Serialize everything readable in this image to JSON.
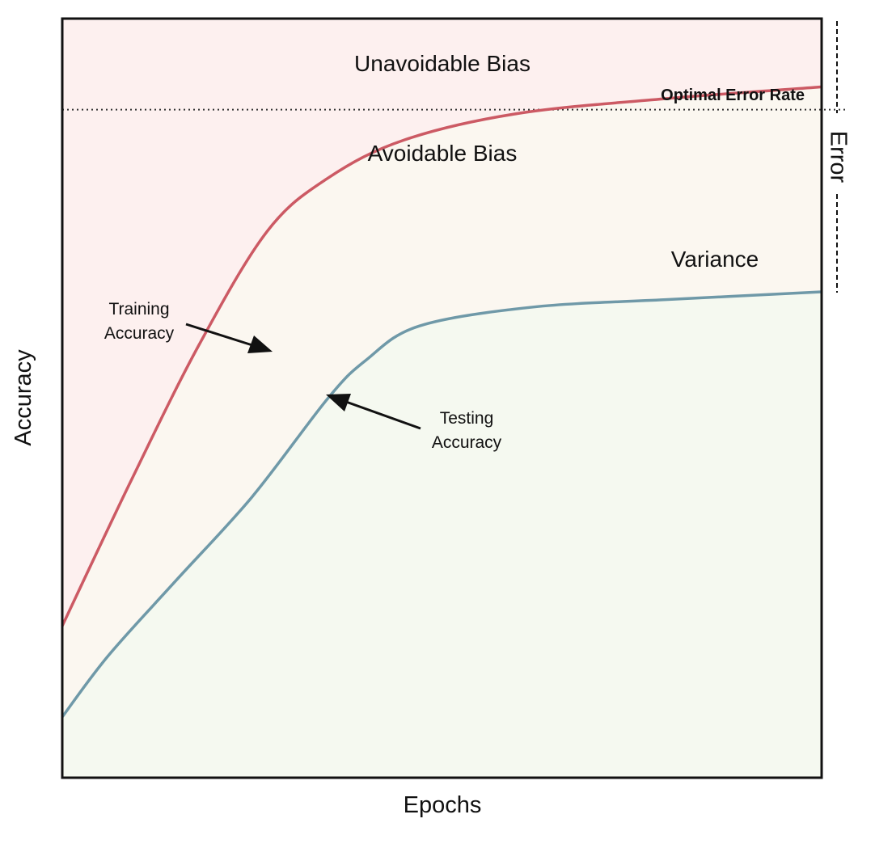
{
  "chart_data": {
    "type": "area",
    "xlabel": "Epochs",
    "ylabel": "Accuracy",
    "grid": false,
    "xlim": [
      0,
      100
    ],
    "ylim": [
      0,
      100
    ],
    "optimal_rate": 88,
    "series": [
      {
        "name": "Training Accuracy",
        "color": "#cc5a64",
        "x": [
          0,
          9,
          18,
          27,
          35,
          45,
          60,
          80,
          100
        ],
        "y": [
          20,
          39,
          57,
          72,
          79,
          84,
          87.5,
          89.5,
          91
        ]
      },
      {
        "name": "Testing Accuracy",
        "color": "#6f99a8",
        "x": [
          0,
          6,
          15,
          25,
          35,
          40,
          47,
          62,
          80,
          100
        ],
        "y": [
          8,
          16,
          26,
          37,
          50,
          55,
          59.5,
          62,
          63,
          64
        ]
      }
    ],
    "regions": {
      "unavoidable_bias": "Unavoidable Bias",
      "avoidable_bias": "Avoidable Bias",
      "variance": "Variance",
      "optimal_error_rate": "Optimal Error Rate",
      "error": "Error"
    },
    "annotations": {
      "training": [
        "Training",
        "Accuracy"
      ],
      "testing": [
        "Testing",
        "Accuracy"
      ]
    },
    "colors": {
      "bias_fill": "#fdf0ef",
      "variance_fill": "#fbf7f0",
      "accuracy_fill": "#f5f9f0",
      "frame": "#111111"
    }
  }
}
